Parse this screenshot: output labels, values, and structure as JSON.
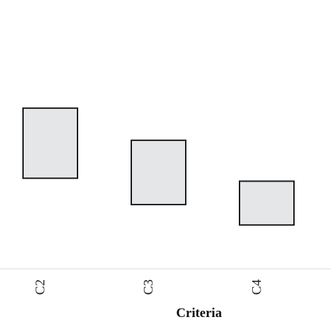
{
  "chart_data": {
    "type": "box",
    "title": "",
    "xlabel": "Criteria",
    "ylabel": "",
    "categories": [
      "C2",
      "C3",
      "C4"
    ],
    "boxes": [
      {
        "category": "C2",
        "low": 0.7,
        "high": 3.1
      },
      {
        "category": "C3",
        "low": -0.2,
        "high": 2.0
      },
      {
        "category": "C4",
        "low": -0.9,
        "high": 0.6
      }
    ],
    "ylim": [
      -2.4,
      6.8
    ],
    "grid": false,
    "legend": "none",
    "colors": {
      "box_fill": "#e4e6e7",
      "box_stroke": "#1a1a1a",
      "axis": "#d9d9d9"
    }
  }
}
